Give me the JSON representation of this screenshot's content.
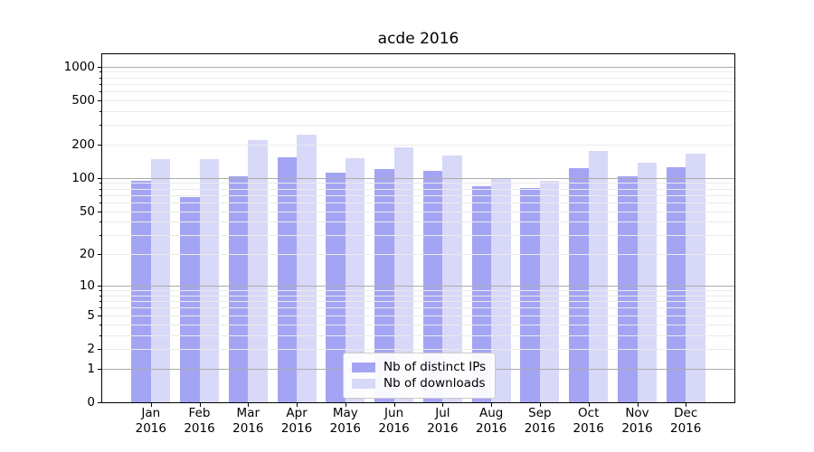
{
  "chart_data": {
    "type": "bar",
    "title": "acde 2016",
    "categories": [
      "Jan 2016",
      "Feb 2016",
      "Mar 2016",
      "Apr 2016",
      "May 2016",
      "Jun 2016",
      "Jul 2016",
      "Aug 2016",
      "Sep 2016",
      "Oct 2016",
      "Nov 2016",
      "Dec 2016"
    ],
    "series": [
      {
        "name": "Nb of distinct IPs",
        "color": "#a4a4f4",
        "values": [
          94,
          67,
          104,
          154,
          112,
          120,
          115,
          84,
          81,
          122,
          104,
          126
        ]
      },
      {
        "name": "Nb of downloads",
        "color": "#d8d8f8",
        "values": [
          148,
          147,
          217,
          245,
          151,
          189,
          159,
          100,
          94,
          175,
          138,
          167
        ]
      }
    ],
    "xlabel": "",
    "ylabel": "",
    "yscale": "log1p",
    "ylim": [
      0,
      1285
    ],
    "y_ticks": [
      0,
      1,
      2,
      5,
      10,
      20,
      50,
      100,
      200,
      500,
      1000
    ],
    "grid": "horizontal minor+major, drawn above bars",
    "legend_position": "inside lower-center"
  },
  "colors": {
    "background": "#ffffff",
    "axis": "#000000",
    "grid_minor": "#ebebeb",
    "grid_major": "#ababab",
    "legend_border": "#cccccc",
    "bar_distinct_ips": "#a4a4f4",
    "bar_downloads": "#d8d8f8"
  }
}
